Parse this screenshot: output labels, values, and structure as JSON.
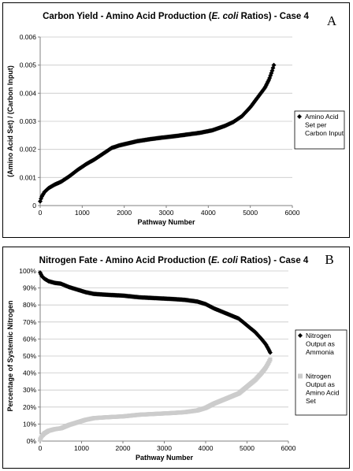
{
  "chart_data": [
    {
      "id": "A",
      "type": "scatter",
      "panel_letter": "A",
      "title": "Carbon Yield - Amino Acid Production (",
      "title_italic": "E. coli",
      "title_tail": " Ratios) - Case 4",
      "xlabel": "Pathway Number",
      "ylabel": "(Amino Acid Set) / (Carbon Input)",
      "xlim": [
        0,
        6000
      ],
      "ylim": [
        0,
        0.006
      ],
      "x_ticks": [
        0,
        1000,
        2000,
        3000,
        4000,
        5000,
        6000
      ],
      "y_ticks": [
        0,
        0.001,
        0.002,
        0.003,
        0.004,
        0.005,
        0.006
      ],
      "y_tick_labels": [
        "0",
        "0.001",
        "0.002",
        "0.003",
        "0.004",
        "0.005",
        "0.006"
      ],
      "legend_position": "right",
      "series": [
        {
          "name": "Amino Acid Set per Carbon Input",
          "legend_lines": [
            "Amino Acid",
            "Set per",
            "Carbon Input"
          ],
          "color": "#000000",
          "marker": "diamond",
          "points": [
            [
              0,
              0.00015
            ],
            [
              30,
              0.0003
            ],
            [
              100,
              0.00048
            ],
            [
              200,
              0.00062
            ],
            [
              350,
              0.00075
            ],
            [
              500,
              0.00085
            ],
            [
              700,
              0.00105
            ],
            [
              900,
              0.00128
            ],
            [
              1100,
              0.00148
            ],
            [
              1300,
              0.00165
            ],
            [
              1500,
              0.00185
            ],
            [
              1700,
              0.00205
            ],
            [
              1900,
              0.00215
            ],
            [
              2100,
              0.00222
            ],
            [
              2300,
              0.00229
            ],
            [
              2600,
              0.00236
            ],
            [
              2900,
              0.00242
            ],
            [
              3200,
              0.00247
            ],
            [
              3500,
              0.00253
            ],
            [
              3800,
              0.00259
            ],
            [
              4100,
              0.00268
            ],
            [
              4400,
              0.00284
            ],
            [
              4600,
              0.00298
            ],
            [
              4800,
              0.00318
            ],
            [
              5000,
              0.0035
            ],
            [
              5200,
              0.0039
            ],
            [
              5350,
              0.0042
            ],
            [
              5450,
              0.0045
            ],
            [
              5520,
              0.0048
            ],
            [
              5560,
              0.005
            ]
          ]
        }
      ]
    },
    {
      "id": "B",
      "type": "scatter",
      "panel_letter": "B",
      "title": "Nitrogen Fate - Amino Acid Production (",
      "title_italic": "E. coli",
      "title_tail": " Ratios) - Case 4",
      "xlabel": "Pathway Number",
      "ylabel": "Percentage of Systemic Nitrogen",
      "xlim": [
        0,
        6000
      ],
      "ylim": [
        0,
        100
      ],
      "x_ticks": [
        0,
        1000,
        2000,
        3000,
        4000,
        5000,
        6000
      ],
      "y_ticks": [
        0,
        10,
        20,
        30,
        40,
        50,
        60,
        70,
        80,
        90,
        100
      ],
      "y_tick_labels": [
        "0%",
        "10%",
        "20%",
        "30%",
        "40%",
        "50%",
        "60%",
        "70%",
        "80%",
        "90%",
        "100%"
      ],
      "legend_position": "right",
      "series": [
        {
          "name": "Nitrogen Output as Ammonia",
          "legend_lines": [
            "Nitrogen",
            "Output as",
            "Ammonia"
          ],
          "color": "#000000",
          "marker": "diamond",
          "points": [
            [
              0,
              99
            ],
            [
              40,
              97
            ],
            [
              100,
              95.5
            ],
            [
              200,
              94
            ],
            [
              350,
              93
            ],
            [
              500,
              92.5
            ],
            [
              700,
              90.5
            ],
            [
              900,
              89
            ],
            [
              1100,
              87.5
            ],
            [
              1300,
              86.5
            ],
            [
              1600,
              86
            ],
            [
              2000,
              85.5
            ],
            [
              2400,
              84.5
            ],
            [
              2800,
              84
            ],
            [
              3200,
              83.5
            ],
            [
              3500,
              83
            ],
            [
              3800,
              82
            ],
            [
              4000,
              80.5
            ],
            [
              4200,
              78
            ],
            [
              4400,
              76
            ],
            [
              4600,
              74
            ],
            [
              4800,
              72
            ],
            [
              5000,
              68
            ],
            [
              5200,
              64
            ],
            [
              5350,
              60
            ],
            [
              5450,
              57
            ],
            [
              5520,
              54
            ],
            [
              5560,
              52
            ]
          ]
        },
        {
          "name": "Nitrogen Output as Amino Acid Set",
          "legend_lines": [
            "Nitrogen",
            "Output as",
            "Amino Acid",
            "Set"
          ],
          "color": "#cccccc",
          "marker": "square",
          "points": [
            [
              0,
              1
            ],
            [
              40,
              3
            ],
            [
              100,
              4.5
            ],
            [
              200,
              6
            ],
            [
              350,
              7
            ],
            [
              500,
              7.5
            ],
            [
              700,
              9.5
            ],
            [
              900,
              11
            ],
            [
              1100,
              12.5
            ],
            [
              1300,
              13.5
            ],
            [
              1600,
              14
            ],
            [
              2000,
              14.5
            ],
            [
              2400,
              15.5
            ],
            [
              2800,
              16
            ],
            [
              3200,
              16.5
            ],
            [
              3500,
              17
            ],
            [
              3800,
              18
            ],
            [
              4000,
              19.5
            ],
            [
              4200,
              22
            ],
            [
              4400,
              24
            ],
            [
              4600,
              26
            ],
            [
              4800,
              28
            ],
            [
              5000,
              32
            ],
            [
              5200,
              36
            ],
            [
              5350,
              40
            ],
            [
              5450,
              43
            ],
            [
              5520,
              46
            ],
            [
              5560,
              48
            ]
          ]
        }
      ]
    }
  ]
}
